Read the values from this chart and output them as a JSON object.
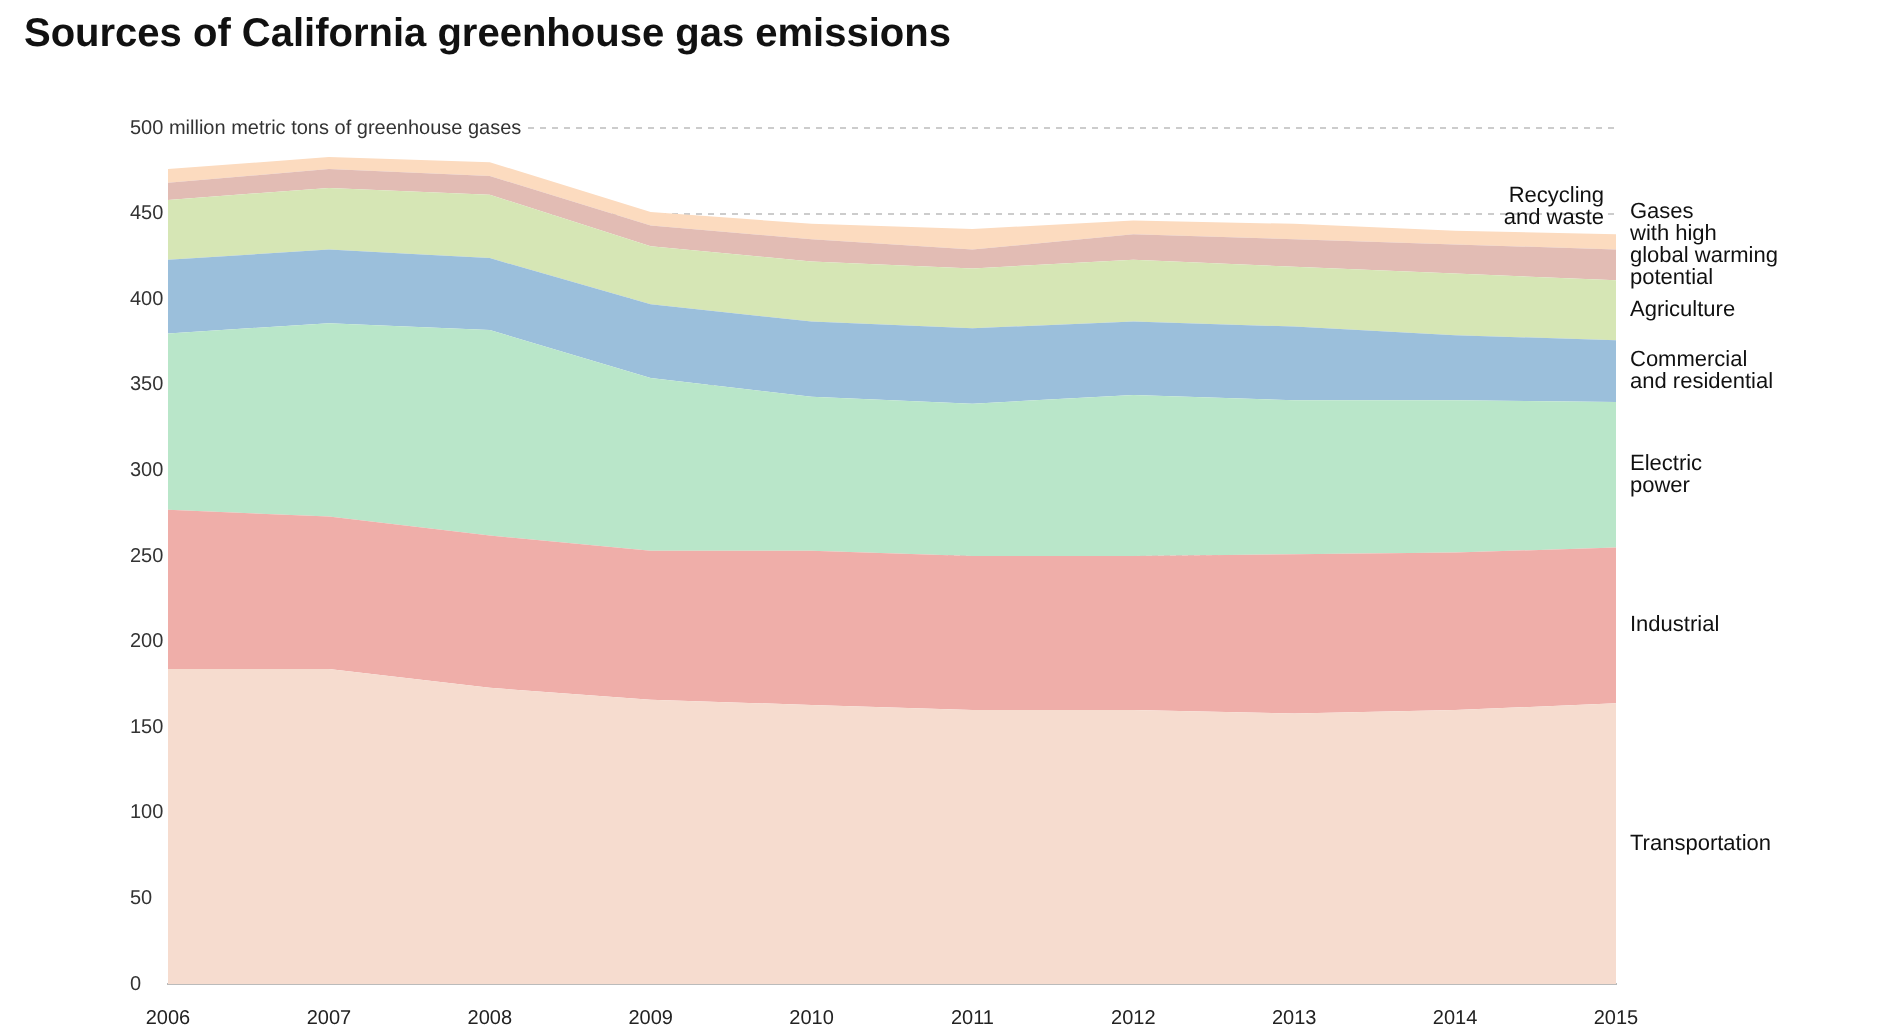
{
  "chart_data": {
    "type": "area",
    "title": "Sources of California greenhouse gas emissions",
    "stacked": true,
    "categories": [
      "2006",
      "2007",
      "2008",
      "2009",
      "2010",
      "2011",
      "2012",
      "2013",
      "2014",
      "2015"
    ],
    "series": [
      {
        "name": "Transportation",
        "color": "#f6dccf",
        "values": [
          184,
          184,
          173,
          166,
          163,
          160,
          160,
          158,
          160,
          164
        ]
      },
      {
        "name": "Industrial",
        "color": "#efaea9",
        "values": [
          93,
          89,
          89,
          87,
          90,
          90,
          90,
          93,
          92,
          91
        ]
      },
      {
        "name": "Electric\npower",
        "color": "#b9e6c9",
        "values": [
          103,
          113,
          120,
          101,
          90,
          89,
          94,
          90,
          89,
          85
        ]
      },
      {
        "name": "Commercial\nand residential",
        "color": "#9bbfdb",
        "values": [
          43,
          43,
          42,
          43,
          44,
          44,
          43,
          43,
          38,
          36
        ]
      },
      {
        "name": "Agriculture",
        "color": "#d6e6b5",
        "values": [
          35,
          36,
          37,
          34,
          35,
          35,
          36,
          35,
          36,
          35
        ]
      },
      {
        "name": "Gases\nwith high\nglobal warming\npotential",
        "color": "#e2bcb4",
        "values": [
          10,
          11,
          11,
          12,
          13,
          11,
          15,
          16,
          17,
          18
        ]
      },
      {
        "name": "Recycling\nand waste",
        "color": "#fcdbbf",
        "values": [
          8,
          7,
          8,
          8,
          9,
          12,
          8,
          9,
          8,
          9
        ]
      }
    ],
    "ylim": [
      0,
      500
    ],
    "yticks": [
      0,
      50,
      100,
      150,
      200,
      250,
      300,
      350,
      400,
      450,
      {
        "value": 500,
        "label": "500 million metric tons of greenhouse gases"
      }
    ],
    "grid": "y",
    "legend": false
  }
}
